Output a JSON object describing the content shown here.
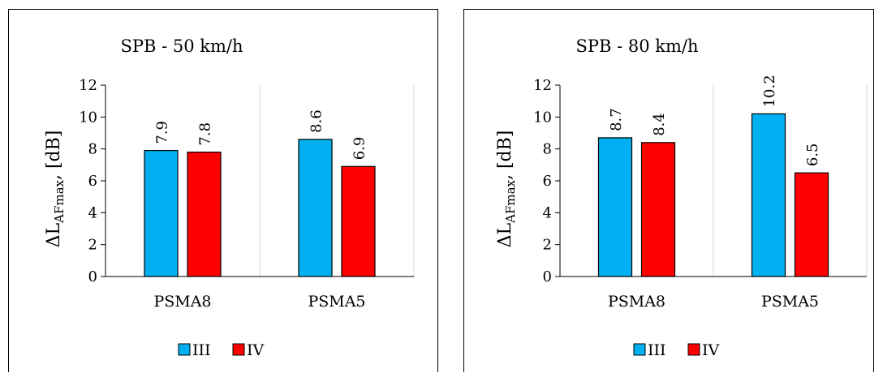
{
  "chart_data": [
    {
      "type": "bar",
      "title": "SPB - 50 km/h",
      "ylabel_main": "ΔL",
      "ylabel_sub": "AFmax",
      "ylabel_tail": ", [dB]",
      "categories": [
        "PSMA8",
        "PSMA5"
      ],
      "series": [
        {
          "name": "III",
          "values": [
            7.9,
            8.6
          ]
        },
        {
          "name": "IV",
          "values": [
            7.8,
            6.9
          ]
        }
      ],
      "data_labels": [
        [
          "7.9",
          "8.6"
        ],
        [
          "7.8",
          "6.9"
        ]
      ],
      "ylim": [
        0,
        12
      ],
      "yticks": [
        "0",
        "2",
        "4",
        "6",
        "8",
        "10",
        "12"
      ],
      "grid": "vertical category separators",
      "legend": "bottom"
    },
    {
      "type": "bar",
      "title": "SPB - 80 km/h",
      "ylabel_main": "ΔL",
      "ylabel_sub": "AFmax",
      "ylabel_tail": ", [dB]",
      "categories": [
        "PSMA8",
        "PSMA5"
      ],
      "series": [
        {
          "name": "III",
          "values": [
            8.7,
            10.2
          ]
        },
        {
          "name": "IV",
          "values": [
            8.4,
            6.5
          ]
        }
      ],
      "data_labels": [
        [
          "8.7",
          "10.2"
        ],
        [
          "8.4",
          "6.5"
        ]
      ],
      "ylim": [
        0,
        12
      ],
      "yticks": [
        "0",
        "2",
        "4",
        "6",
        "8",
        "10",
        "12"
      ],
      "grid": "vertical category separators",
      "legend": "bottom"
    }
  ],
  "colors": {
    "III": "#00b0f0",
    "IV": "#ff0000",
    "axis": "#000000",
    "gridline": "#d9d9d9"
  }
}
